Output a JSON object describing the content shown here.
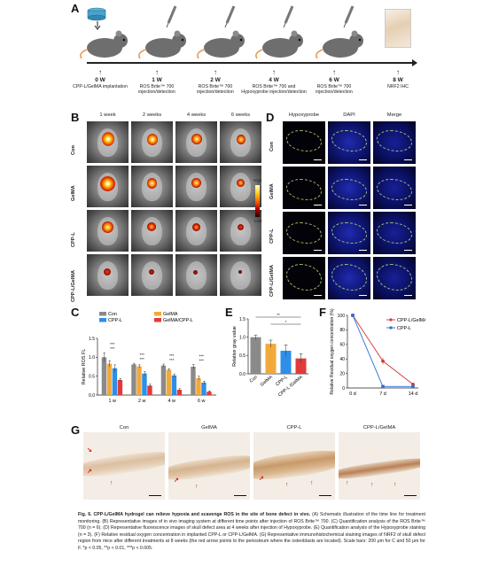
{
  "panel_letters": {
    "a": "A",
    "b": "B",
    "c": "C",
    "d": "D",
    "e": "E",
    "f": "F",
    "g": "G"
  },
  "panel_a": {
    "timepoints": [
      {
        "week": "0 W",
        "desc": "CPP-L/GelMA implantation"
      },
      {
        "week": "1 W",
        "desc": "ROS Brite™ 700 injection/detection"
      },
      {
        "week": "2 W",
        "desc": "ROS Brite™ 700 injection/detection"
      },
      {
        "week": "4 W",
        "desc": "ROS Brite™ 700 and Hypoxyprobe injection/detection"
      },
      {
        "week": "6 W",
        "desc": "ROS Brite™ 700 injection/detection"
      },
      {
        "week": "8 W",
        "desc": "NRF2 IHC"
      }
    ]
  },
  "panel_b": {
    "columns": [
      "1 week",
      "2 weeks",
      "4 weeks",
      "6 weeks"
    ],
    "rows": [
      "Con",
      "GelMA",
      "CPP-L",
      "CPP-L/GelMA"
    ],
    "colorbar": {
      "high": "High",
      "low": "Low"
    }
  },
  "panel_d": {
    "columns": [
      "Hypoxyprobe",
      "DAPI",
      "Merge"
    ],
    "rows": [
      "Con",
      "GelMA",
      "CPP-L",
      "CPP-L/GelMA"
    ]
  },
  "colors": {
    "con": "#8a8a8a",
    "gelma": "#f2a93b",
    "cppl": "#2d8fe8",
    "cppl_gelma": "#e23a3a",
    "cppl_gelma_line": "#d43838",
    "cppl_line": "#2b6fd0"
  },
  "chart_data": [
    {
      "panel": "C",
      "type": "bar",
      "categories": [
        "1 w",
        "2 w",
        "4 w",
        "6 w"
      ],
      "ylabel": "Relative ROS FL",
      "ylim": [
        0,
        1.5
      ],
      "yticks": [
        "0.0",
        "0.5",
        "1.0",
        "1.5"
      ],
      "series": [
        {
          "name": "Con",
          "values": [
            1.0,
            0.81,
            0.78,
            0.75
          ],
          "errors": [
            0.12,
            0.03,
            0.04,
            0.06
          ]
        },
        {
          "name": "GelMA",
          "values": [
            0.83,
            0.76,
            0.67,
            0.45
          ],
          "errors": [
            0.08,
            0.04,
            0.03,
            0.05
          ]
        },
        {
          "name": "CPP-L",
          "values": [
            0.71,
            0.57,
            0.52,
            0.33
          ],
          "errors": [
            0.09,
            0.05,
            0.04,
            0.04
          ]
        },
        {
          "name": "GelMA/CPP-L",
          "values": [
            0.4,
            0.25,
            0.14,
            0.09
          ],
          "errors": [
            0.04,
            0.04,
            0.03,
            0.02
          ]
        }
      ],
      "legend": [
        "Con",
        "GelMA",
        "CPP-L",
        "GelMA/CPP-L"
      ],
      "annotations": [
        "***",
        "***",
        "***",
        "***",
        "***",
        "***",
        "*",
        "***",
        "***",
        "*"
      ]
    },
    {
      "panel": "E",
      "type": "bar",
      "categories": [
        "Con",
        "GelMA",
        "CPP-L",
        "CPP-L /GelMA"
      ],
      "ylabel": "Relative gray value",
      "ylim": [
        0,
        1.5
      ],
      "yticks": [
        "0.0",
        "0.5",
        "1.0",
        "1.5"
      ],
      "values": [
        1.0,
        0.82,
        0.63,
        0.42
      ],
      "errors": [
        0.06,
        0.1,
        0.16,
        0.13
      ],
      "annotations": [
        "**",
        "*"
      ]
    },
    {
      "panel": "F",
      "type": "line",
      "x": [
        "0 d",
        "7 d",
        "14 d"
      ],
      "ylabel": "Relative Residual oxygen concentration (%)",
      "ylim": [
        0,
        100
      ],
      "yticks": [
        "0",
        "20",
        "40",
        "60",
        "80",
        "100"
      ],
      "series": [
        {
          "name": "CPP-L/GelMA",
          "values": [
            100,
            37,
            5
          ],
          "errors": [
            0,
            5,
            2
          ]
        },
        {
          "name": "CPP-L",
          "values": [
            100,
            2,
            2
          ],
          "errors": [
            0,
            1,
            1
          ]
        }
      ]
    }
  ],
  "panel_g": {
    "columns": [
      "Con",
      "GelMA",
      "CPP-L",
      "CPP-L/GelMA"
    ]
  },
  "caption": {
    "label": "Fig. 6.",
    "title": "CPP-L/GelMA hydrogel can relieve hypoxia and scavenge ROS in the site of bone defect in vivo.",
    "text": "(A) Schematic illustration of the time line for treatment monitoring. (B) Representative images of in vivo imaging system at different time points after injection of ROS Brite™ 700. (C) Quantification analysis of the ROS Brite™ 700 (n = 6). (D) Representative fluorescence images of skull defect area at 4 weeks after injection of Hypoxyprobe. (E) Quantification analysis of the Hypoxyprobe staining (n = 3). (F) Relative residual oxygen concentration in implanted CPP-L or CPP-L/GelMA. (G) Representative immunohistochemical staining images of NRF2 of skull defect region from mice after different treatments at 8 weeks (the red arrow points to the periosteum where the osteoblasts are located). Scale bars: 200 μm for C and 50 μm for F. *p < 0.05, **p < 0.01, ***p < 0.005."
  }
}
